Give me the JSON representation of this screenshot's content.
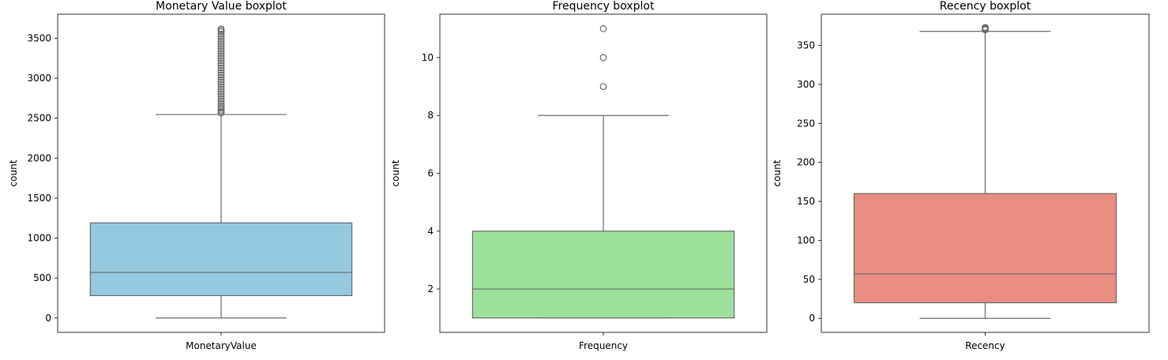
{
  "chart_data": [
    {
      "type": "box",
      "title": "Monetary Value boxplot",
      "xlabel": "MonetaryValue",
      "ylabel": "count",
      "category": "MonetaryValue",
      "color": "#94c9df",
      "ylim": [
        -180,
        3800
      ],
      "yticks": [
        0,
        500,
        1000,
        1500,
        2000,
        2500,
        3000,
        3500
      ],
      "box": {
        "whisker_low": 0,
        "q1": 280,
        "median": 570,
        "q3": 1190,
        "whisker_high": 2545
      },
      "outliers": [
        2565,
        2580,
        2600,
        2625,
        2650,
        2680,
        2710,
        2740,
        2770,
        2800,
        2830,
        2860,
        2890,
        2920,
        2950,
        2980,
        3010,
        3040,
        3070,
        3100,
        3130,
        3160,
        3190,
        3220,
        3250,
        3280,
        3310,
        3340,
        3370,
        3400,
        3430,
        3460,
        3490,
        3520,
        3550,
        3580,
        3600,
        3615
      ]
    },
    {
      "type": "box",
      "title": "Frequency boxplot",
      "xlabel": "Frequency",
      "ylabel": "count",
      "category": "Frequency",
      "color": "#9be19b",
      "ylim": [
        0.5,
        11.5
      ],
      "yticks": [
        2,
        4,
        6,
        8,
        10
      ],
      "box": {
        "whisker_low": 1,
        "q1": 1,
        "median": 2,
        "q3": 4,
        "whisker_high": 8
      },
      "outliers": [
        9,
        10,
        11
      ]
    },
    {
      "type": "box",
      "title": "Recency boxplot",
      "xlabel": "Recency",
      "ylabel": "count",
      "category": "Recency",
      "color": "#e88d80",
      "ylim": [
        -18,
        390
      ],
      "yticks": [
        0,
        50,
        100,
        150,
        200,
        250,
        300,
        350
      ],
      "box": {
        "whisker_low": 0,
        "q1": 20,
        "median": 57,
        "q3": 160,
        "whisker_high": 368
      },
      "outliers": [
        370,
        371,
        372,
        373
      ]
    }
  ]
}
